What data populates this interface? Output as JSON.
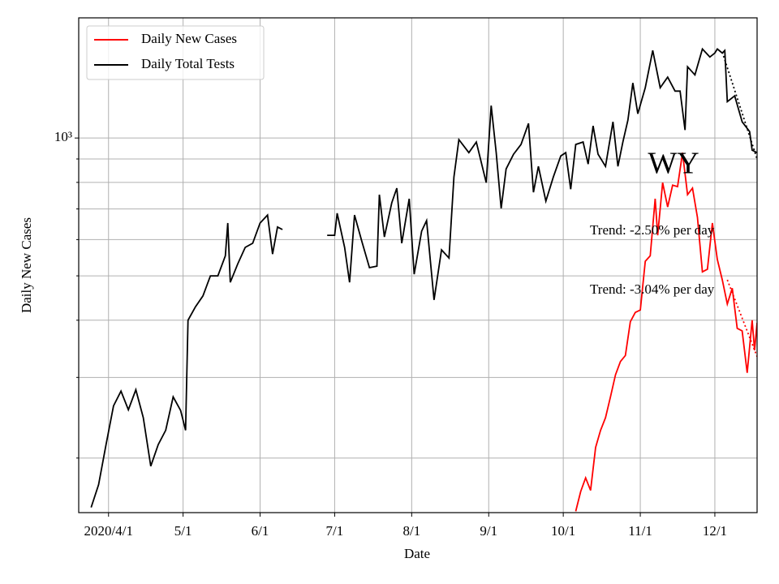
{
  "chart_data": {
    "type": "line",
    "state": "WY",
    "xlabel": "Date",
    "ylabel": "Daily New Cases",
    "log_y": true,
    "grid": true,
    "legend": "upper left",
    "xlim": [
      "2020-03-20",
      "2020-12-18"
    ],
    "ylim": [
      152,
      1830
    ],
    "yticks": [
      {
        "value": 1000,
        "label": "10³"
      }
    ],
    "yminorticks": [
      200,
      300,
      400,
      500,
      600,
      700,
      800,
      900
    ],
    "xticks": [
      {
        "value": "2020-04-01",
        "label": "2020/4/1"
      },
      {
        "value": "2020-05-01",
        "label": "5/1"
      },
      {
        "value": "2020-06-01",
        "label": "6/1"
      },
      {
        "value": "2020-07-01",
        "label": "7/1"
      },
      {
        "value": "2020-08-01",
        "label": "8/1"
      },
      {
        "value": "2020-09-01",
        "label": "9/1"
      },
      {
        "value": "2020-10-01",
        "label": "10/1"
      },
      {
        "value": "2020-11-01",
        "label": "11/1"
      },
      {
        "value": "2020-12-01",
        "label": "12/1"
      }
    ],
    "series": [
      {
        "name": "Daily New Cases",
        "color": "#ff0000",
        "x": [
          "2020-10-06",
          "2020-10-08",
          "2020-10-10",
          "2020-10-12",
          "2020-10-14",
          "2020-10-16",
          "2020-10-18",
          "2020-10-20",
          "2020-10-22",
          "2020-10-24",
          "2020-10-26",
          "2020-10-28",
          "2020-10-30",
          "2020-11-01",
          "2020-11-03",
          "2020-11-05",
          "2020-11-07",
          "2020-11-08",
          "2020-11-10",
          "2020-11-12",
          "2020-11-14",
          "2020-11-16",
          "2020-11-18",
          "2020-11-20",
          "2020-11-22",
          "2020-11-24",
          "2020-11-26",
          "2020-11-28",
          "2020-11-30",
          "2020-12-02",
          "2020-12-04",
          "2020-12-06",
          "2020-12-08",
          "2020-12-10",
          "2020-12-12",
          "2020-12-14",
          "2020-12-16",
          "2020-12-17",
          "2020-12-18"
        ],
        "values": [
          153,
          169,
          181,
          170,
          211,
          230,
          245,
          272,
          304,
          325,
          335,
          397,
          416,
          421,
          538,
          553,
          737,
          613,
          799,
          707,
          789,
          783,
          929,
          752,
          777,
          671,
          510,
          517,
          652,
          543,
          490,
          434,
          470,
          384,
          379,
          307,
          400,
          344,
          395
        ]
      },
      {
        "name": "Daily Total Tests",
        "color": "#000000",
        "x": [
          "2020-03-25",
          "2020-03-28",
          "2020-03-31",
          "2020-04-03",
          "2020-04-06",
          "2020-04-09",
          "2020-04-12",
          "2020-04-15",
          "2020-04-18",
          "2020-04-21",
          "2020-04-24",
          "2020-04-27",
          "2020-04-30",
          "2020-05-02",
          "2020-05-03",
          "2020-05-06",
          "2020-05-09",
          "2020-05-12",
          "2020-05-15",
          "2020-05-18",
          "2020-05-19",
          "2020-05-20",
          "2020-05-23",
          "2020-05-26",
          "2020-05-29",
          "2020-06-01",
          "2020-06-04",
          "2020-06-06",
          "2020-06-08",
          "2020-06-10",
          "2020-06-20",
          "2020-06-28",
          "2020-07-01",
          "2020-07-02",
          "2020-07-05",
          "2020-07-07",
          "2020-07-09",
          "2020-07-12",
          "2020-07-15",
          "2020-07-18",
          "2020-07-19",
          "2020-07-21",
          "2020-07-24",
          "2020-07-26",
          "2020-07-28",
          "2020-07-31",
          "2020-08-02",
          "2020-08-05",
          "2020-08-07",
          "2020-08-10",
          "2020-08-13",
          "2020-08-16",
          "2020-08-18",
          "2020-08-20",
          "2020-08-24",
          "2020-08-27",
          "2020-08-31",
          "2020-09-02",
          "2020-09-04",
          "2020-09-06",
          "2020-09-08",
          "2020-09-11",
          "2020-09-14",
          "2020-09-17",
          "2020-09-19",
          "2020-09-21",
          "2020-09-24",
          "2020-09-27",
          "2020-09-30",
          "2020-10-02",
          "2020-10-04",
          "2020-10-06",
          "2020-10-09",
          "2020-10-11",
          "2020-10-13",
          "2020-10-15",
          "2020-10-18",
          "2020-10-21",
          "2020-10-23",
          "2020-10-25",
          "2020-10-27",
          "2020-10-29",
          "2020-10-31",
          "2020-11-03",
          "2020-11-06",
          "2020-11-09",
          "2020-11-12",
          "2020-11-15",
          "2020-11-17",
          "2020-11-19",
          "2020-11-20",
          "2020-11-23",
          "2020-11-26",
          "2020-11-29",
          "2020-12-01",
          "2020-12-02",
          "2020-12-04",
          "2020-12-05",
          "2020-12-06",
          "2020-12-09",
          "2020-12-12",
          "2020-12-15",
          "2020-12-16",
          "2020-12-18"
        ],
        "values": [
          156,
          175,
          214,
          260,
          280,
          255,
          282,
          245,
          192,
          214,
          230,
          272,
          254,
          230,
          400,
          428,
          452,
          500,
          500,
          553,
          652,
          484,
          531,
          577,
          589,
          652,
          679,
          558,
          639,
          631,
          null,
          613,
          613,
          685,
          577,
          484,
          679,
          593,
          521,
          525,
          752,
          608,
          722,
          777,
          589,
          737,
          504,
          626,
          660,
          443,
          570,
          547,
          822,
          992,
          929,
          980,
          799,
          1177,
          929,
          702,
          856,
          922,
          968,
          1076,
          761,
          867,
          728,
          822,
          914,
          929,
          773,
          968,
          980,
          877,
          1063,
          922,
          867,
          1085,
          867,
          980,
          1094,
          1319,
          1130,
          1288,
          1553,
          1288,
          1358,
          1266,
          1266,
          1041,
          1431,
          1374,
          1565,
          1503,
          1533,
          1565,
          1533,
          1553,
          1201,
          1236,
          1085,
          1033,
          941,
          929
        ]
      }
    ],
    "trend_lines": [
      {
        "color": "#000000",
        "x": [
          "2020-12-04",
          "2020-12-18"
        ],
        "values": [
          1540,
          900
        ]
      },
      {
        "color": "#ff0000",
        "x": [
          "2020-12-06",
          "2020-12-18"
        ],
        "values": [
          490,
          333
        ]
      }
    ],
    "annotations": [
      "Trend: -2.50% per day",
      "Trend: -3.04% per day"
    ]
  }
}
